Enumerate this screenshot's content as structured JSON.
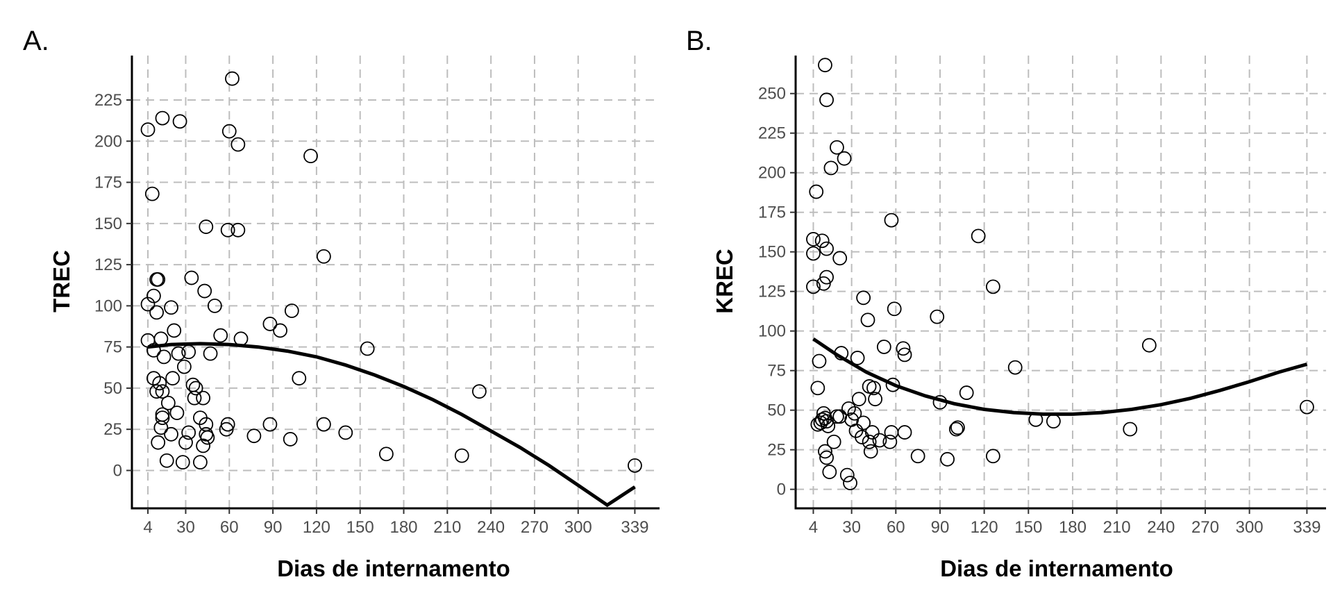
{
  "chart_data": [
    {
      "type": "scatter",
      "panel_label": "A.",
      "xlabel": "Dias de internamento",
      "ylabel": "TREC",
      "xlim": [
        -7,
        356
      ],
      "ylim": [
        -23,
        252
      ],
      "x_ticks": [
        4,
        30,
        60,
        90,
        120,
        150,
        180,
        210,
        240,
        270,
        300,
        339
      ],
      "y_ticks": [
        0,
        25,
        50,
        75,
        100,
        125,
        150,
        175,
        200,
        225
      ],
      "grid": true,
      "points": [
        [
          4,
          207
        ],
        [
          7,
          168
        ],
        [
          4,
          101
        ],
        [
          8,
          106
        ],
        [
          10,
          116
        ],
        [
          11,
          116
        ],
        [
          10,
          96
        ],
        [
          8,
          73
        ],
        [
          15,
          69
        ],
        [
          13,
          80
        ],
        [
          4,
          79
        ],
        [
          8,
          56
        ],
        [
          10,
          48
        ],
        [
          12,
          53
        ],
        [
          14,
          48
        ],
        [
          18,
          41
        ],
        [
          14,
          34
        ],
        [
          14,
          32
        ],
        [
          13,
          26
        ],
        [
          11,
          17
        ],
        [
          17,
          6
        ],
        [
          20,
          22
        ],
        [
          21,
          56
        ],
        [
          22,
          85
        ],
        [
          20,
          99
        ],
        [
          25,
          71
        ],
        [
          26,
          212
        ],
        [
          14,
          214
        ],
        [
          29,
          63
        ],
        [
          32,
          72
        ],
        [
          34,
          117
        ],
        [
          35,
          52
        ],
        [
          37,
          50
        ],
        [
          36,
          44
        ],
        [
          42,
          44
        ],
        [
          40,
          32
        ],
        [
          44,
          22
        ],
        [
          42,
          15
        ],
        [
          45,
          20
        ],
        [
          44,
          28
        ],
        [
          32,
          23
        ],
        [
          30,
          17
        ],
        [
          28,
          5
        ],
        [
          24,
          35
        ],
        [
          40,
          5
        ],
        [
          43,
          109
        ],
        [
          44,
          148
        ],
        [
          47,
          71
        ],
        [
          50,
          100
        ],
        [
          54,
          82
        ],
        [
          58,
          25
        ],
        [
          59,
          28
        ],
        [
          59,
          146
        ],
        [
          60,
          206
        ],
        [
          62,
          238
        ],
        [
          66,
          146
        ],
        [
          66,
          198
        ],
        [
          68,
          80
        ],
        [
          77,
          21
        ],
        [
          88,
          89
        ],
        [
          88,
          28
        ],
        [
          95,
          85
        ],
        [
          103,
          97
        ],
        [
          102,
          19
        ],
        [
          108,
          56
        ],
        [
          116,
          191
        ],
        [
          125,
          130
        ],
        [
          125,
          28
        ],
        [
          140,
          23
        ],
        [
          155,
          74
        ],
        [
          168,
          10
        ],
        [
          220,
          9
        ],
        [
          232,
          48
        ],
        [
          339,
          3
        ]
      ],
      "fit_curve": [
        [
          4,
          75
        ],
        [
          20,
          76.5
        ],
        [
          40,
          77
        ],
        [
          60,
          76.5
        ],
        [
          80,
          75
        ],
        [
          100,
          72.5
        ],
        [
          120,
          69
        ],
        [
          140,
          64
        ],
        [
          160,
          58
        ],
        [
          180,
          51
        ],
        [
          200,
          43
        ],
        [
          220,
          34
        ],
        [
          240,
          24
        ],
        [
          260,
          14
        ],
        [
          280,
          3
        ],
        [
          300,
          -9
        ],
        [
          320,
          -21
        ],
        [
          339,
          -10
        ]
      ]
    },
    {
      "type": "scatter",
      "panel_label": "B.",
      "xlabel": "Dias de internamento",
      "ylabel": "KREC",
      "xlim": [
        -8,
        352
      ],
      "ylim": [
        -12,
        274
      ],
      "x_ticks": [
        4,
        30,
        60,
        90,
        120,
        150,
        180,
        210,
        240,
        270,
        300,
        339
      ],
      "y_ticks": [
        0,
        25,
        50,
        75,
        100,
        125,
        150,
        175,
        200,
        225,
        250
      ],
      "grid": true,
      "points": [
        [
          12,
          268
        ],
        [
          13,
          246
        ],
        [
          20,
          216
        ],
        [
          16,
          203
        ],
        [
          25,
          209
        ],
        [
          6,
          188
        ],
        [
          4,
          158
        ],
        [
          4,
          149
        ],
        [
          10,
          157
        ],
        [
          13,
          152
        ],
        [
          11,
          130
        ],
        [
          13,
          134
        ],
        [
          22,
          146
        ],
        [
          4,
          128
        ],
        [
          8,
          81
        ],
        [
          7,
          64
        ],
        [
          38,
          121
        ],
        [
          41,
          107
        ],
        [
          57,
          170
        ],
        [
          59,
          114
        ],
        [
          52,
          90
        ],
        [
          88,
          109
        ],
        [
          116,
          160
        ],
        [
          126,
          128
        ],
        [
          65,
          89
        ],
        [
          66,
          85
        ],
        [
          34,
          83
        ],
        [
          23,
          86
        ],
        [
          42,
          65
        ],
        [
          45,
          64
        ],
        [
          58,
          66
        ],
        [
          90,
          55
        ],
        [
          108,
          61
        ],
        [
          141,
          77
        ],
        [
          232,
          91
        ],
        [
          339,
          52
        ],
        [
          7,
          41
        ],
        [
          9,
          42
        ],
        [
          10,
          44
        ],
        [
          11,
          48
        ],
        [
          12,
          45
        ],
        [
          13,
          43
        ],
        [
          14,
          40
        ],
        [
          12,
          24
        ],
        [
          13,
          20
        ],
        [
          15,
          11
        ],
        [
          18,
          30
        ],
        [
          20,
          46
        ],
        [
          22,
          46
        ],
        [
          28,
          51
        ],
        [
          30,
          44
        ],
        [
          32,
          48
        ],
        [
          33,
          37
        ],
        [
          35,
          57
        ],
        [
          37,
          33
        ],
        [
          38,
          42
        ],
        [
          42,
          30
        ],
        [
          44,
          36
        ],
        [
          43,
          24
        ],
        [
          46,
          57
        ],
        [
          49,
          31
        ],
        [
          56,
          30
        ],
        [
          57,
          36
        ],
        [
          66,
          36
        ],
        [
          75,
          21
        ],
        [
          95,
          19
        ],
        [
          101,
          38
        ],
        [
          102,
          39
        ],
        [
          126,
          21
        ],
        [
          155,
          44
        ],
        [
          167,
          43
        ],
        [
          219,
          38
        ],
        [
          27,
          9
        ],
        [
          29,
          4
        ]
      ],
      "fit_curve": [
        [
          4,
          95
        ],
        [
          20,
          85
        ],
        [
          40,
          74
        ],
        [
          60,
          65.5
        ],
        [
          80,
          59
        ],
        [
          100,
          54
        ],
        [
          120,
          50.5
        ],
        [
          140,
          48.5
        ],
        [
          160,
          47.5
        ],
        [
          180,
          47.5
        ],
        [
          200,
          48.5
        ],
        [
          220,
          50.5
        ],
        [
          240,
          53.5
        ],
        [
          260,
          57.5
        ],
        [
          280,
          62.5
        ],
        [
          300,
          68
        ],
        [
          320,
          74
        ],
        [
          339,
          79
        ]
      ]
    }
  ]
}
